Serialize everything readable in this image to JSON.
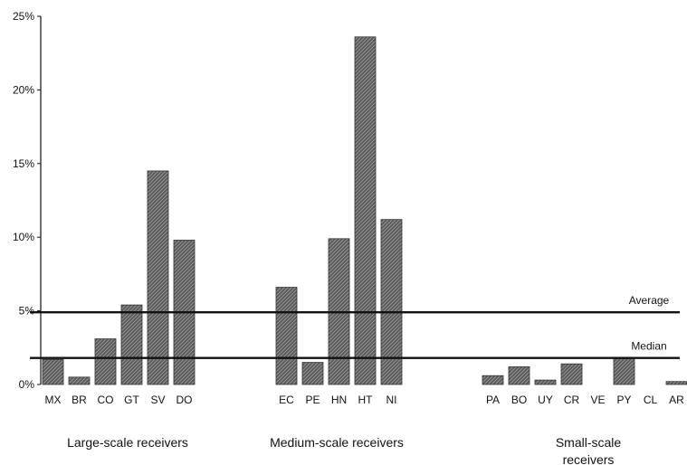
{
  "chart_data": {
    "type": "bar",
    "title": "",
    "xlabel": "",
    "ylabel": "",
    "ylim": [
      0,
      25
    ],
    "yticks": [
      "0%",
      "5%",
      "10%",
      "15%",
      "20%",
      "25%"
    ],
    "ytick_values": [
      0,
      5,
      10,
      15,
      20,
      25
    ],
    "grid": false,
    "bar_color": "#6b6b6b",
    "line_color": "#111111",
    "groups": [
      {
        "label": "Large-scale receivers",
        "label_lines": [
          "Large-scale receivers"
        ],
        "categories": [
          "MX",
          "BR",
          "CO",
          "GT",
          "SV",
          "DO"
        ],
        "values": [
          1.7,
          0.5,
          3.1,
          5.4,
          14.5,
          9.8
        ]
      },
      {
        "label": "Medium-scale receivers",
        "label_lines": [
          "Medium-scale receivers"
        ],
        "categories": [
          "EC",
          "PE",
          "HN",
          "HT",
          "NI"
        ],
        "values": [
          6.6,
          1.5,
          9.9,
          23.6,
          11.2
        ]
      },
      {
        "label": "Small-scale receivers",
        "label_lines": [
          "Small-scale",
          "receivers"
        ],
        "categories": [
          "PA",
          "BO",
          "UY",
          "CR",
          "VE",
          "PY",
          "CL",
          "AR"
        ],
        "values": [
          0.6,
          1.2,
          0.3,
          1.4,
          0.0,
          1.8,
          0.0,
          0.2
        ]
      }
    ],
    "reference_lines": [
      {
        "name": "Average",
        "value": 4.9
      },
      {
        "name": "Median",
        "value": 1.8
      }
    ]
  }
}
